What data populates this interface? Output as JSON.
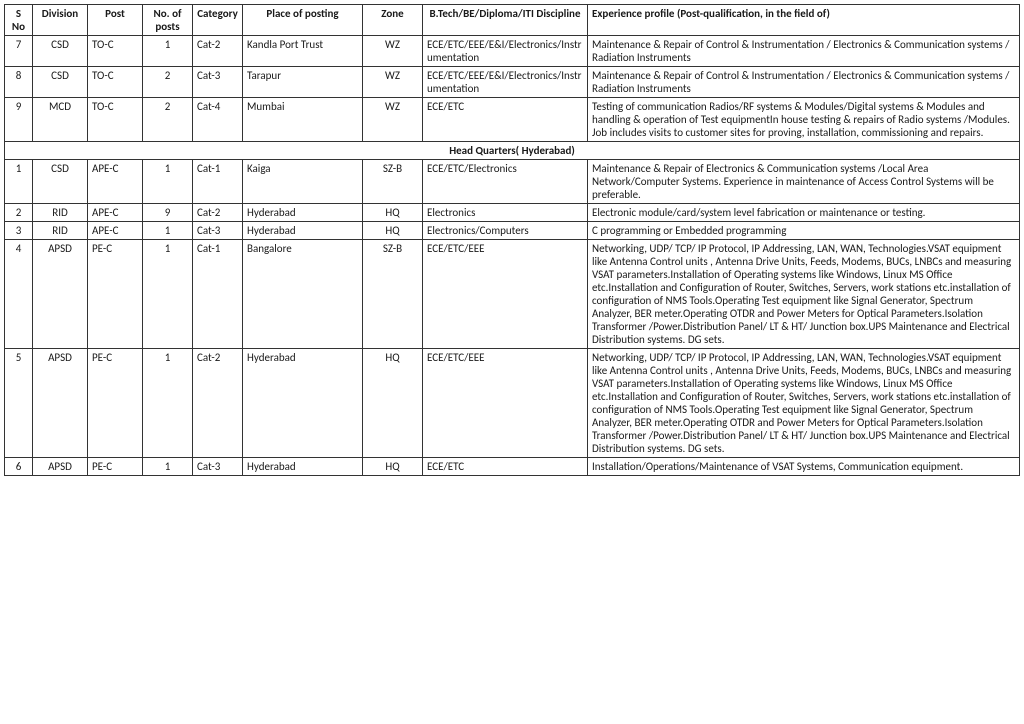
{
  "headers": {
    "sno": "S No",
    "division": "Division",
    "post": "Post",
    "noOfPosts": "No. of posts",
    "category": "Category",
    "place": "Place of posting",
    "zone": "Zone",
    "discipline": "B.Tech/BE/Diploma/ITI Discipline",
    "experience": "Experience profile\n(Post-qualification, in the field of)"
  },
  "sectionTitle": "Head Quarters( Hyderabad)",
  "rowsTop": [
    {
      "sno": "7",
      "division": "CSD",
      "post": "TO-C",
      "noOfPosts": "1",
      "category": "Cat-2",
      "place": "Kandla Port Trust",
      "zone": "WZ",
      "discipline": "ECE/ETC/EEE/E&I/Electronics/Instrumentation",
      "experience": "Maintenance & Repair of Control & Instrumentation / Electronics & Communication systems / Radiation Instruments"
    },
    {
      "sno": "8",
      "division": "CSD",
      "post": "TO-C",
      "noOfPosts": "2",
      "category": "Cat-3",
      "place": "Tarapur",
      "zone": "WZ",
      "discipline": "ECE/ETC/EEE/E&I/Electronics/Instrumentation",
      "experience": "Maintenance & Repair of Control & Instrumentation / Electronics & Communication systems / Radiation Instruments"
    },
    {
      "sno": "9",
      "division": "MCD",
      "post": "TO-C",
      "noOfPosts": "2",
      "category": "Cat-4",
      "place": "Mumbai",
      "zone": "WZ",
      "discipline": "ECE/ETC",
      "experience": "Testing of communication Radios/RF systems & Modules/Digital systems & Modules and handling & operation of Test equipmentIn house testing & repairs of Radio systems /Modules. Job includes visits to customer sites for proving, installation, commissioning and repairs."
    }
  ],
  "rowsBottom": [
    {
      "sno": "1",
      "division": "CSD",
      "post": "APE-C",
      "noOfPosts": "1",
      "category": "Cat-1",
      "place": "Kaiga",
      "zone": "SZ-B",
      "discipline": "ECE/ETC/Electronics",
      "experience": "Maintenance & Repair of Electronics & Communication systems /Local Area Network/Computer Systems. Experience in maintenance of Access Control Systems will be preferable."
    },
    {
      "sno": "2",
      "division": "RID",
      "post": "APE-C",
      "noOfPosts": "9",
      "category": "Cat-2",
      "place": "Hyderabad",
      "zone": "HQ",
      "discipline": "Electronics",
      "experience": "Electronic module/card/system level fabrication or maintenance or testing."
    },
    {
      "sno": "3",
      "division": "RID",
      "post": "APE-C",
      "noOfPosts": "1",
      "category": "Cat-3",
      "place": "Hyderabad",
      "zone": "HQ",
      "discipline": "Electronics/Computers",
      "experience": "C programming or Embedded programming"
    },
    {
      "sno": "4",
      "division": "APSD",
      "post": "PE-C",
      "noOfPosts": "1",
      "category": "Cat-1",
      "place": "Bangalore",
      "zone": "SZ-B",
      "discipline": "ECE/ETC/EEE",
      "experience": "Networking, UDP/ TCP/ IP Protocol, IP Addressing, LAN, WAN, Technologies.VSAT equipment like Antenna Control units , Antenna Drive Units, Feeds, Modems, BUCs, LNBCs and measuring VSAT parameters.Installation of Operating systems like Windows, Linux MS Office etc.Installation and Configuration of Router, Switches, Servers, work stations etc.installation of configuration of NMS Tools.Operating Test equipment like Signal Generator, Spectrum Analyzer, BER meter.Operating OTDR and Power Meters for Optical Parameters.Isolation Transformer /Power.Distribution Panel/ LT & HT/ Junction box.UPS Maintenance and Electrical Distribution systems. DG sets."
    },
    {
      "sno": "5",
      "division": "APSD",
      "post": "PE-C",
      "noOfPosts": "1",
      "category": "Cat-2",
      "place": "Hyderabad",
      "zone": "HQ",
      "discipline": "ECE/ETC/EEE",
      "experience": "Networking, UDP/ TCP/ IP Protocol, IP Addressing, LAN, WAN, Technologies.VSAT equipment like Antenna Control units , Antenna Drive Units, Feeds, Modems, BUCs, LNBCs and measuring VSAT parameters.Installation of Operating systems like Windows, Linux MS Office etc.Installation and Configuration of Router, Switches, Servers, work stations etc.installation of configuration of NMS Tools.Operating Test equipment like Signal Generator, Spectrum Analyzer, BER meter.Operating OTDR and Power Meters for Optical Parameters.Isolation Transformer /Power.Distribution Panel/ LT & HT/ Junction box.UPS Maintenance and Electrical Distribution systems. DG sets."
    },
    {
      "sno": "6",
      "division": "APSD",
      "post": "PE-C",
      "noOfPosts": "1",
      "category": "Cat-3",
      "place": "Hyderabad",
      "zone": "HQ",
      "discipline": "ECE/ETC",
      "experience": "Installation/Operations/Maintenance of VSAT Systems, Communication equipment."
    }
  ]
}
